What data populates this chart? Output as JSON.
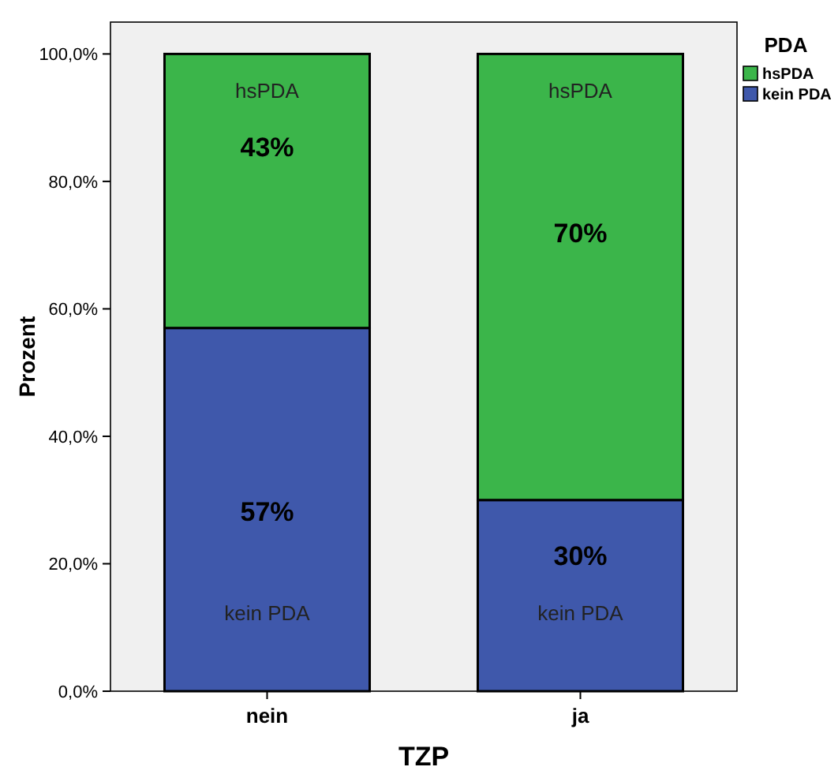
{
  "chart_data": {
    "type": "bar",
    "stacked": true,
    "xlabel": "TZP",
    "ylabel": "Prozent",
    "legend_title": "PDA",
    "legend": "top right",
    "categories": [
      "nein",
      "ja"
    ],
    "series": [
      {
        "name": "kein PDA",
        "color": "#3f58ab",
        "values": [
          57,
          30
        ],
        "value_labels": [
          "57%",
          "30%"
        ]
      },
      {
        "name": "hsPDA",
        "color": "#3bb54a",
        "values": [
          43,
          70
        ],
        "value_labels": [
          "43%",
          "70%"
        ]
      }
    ],
    "ylim": [
      0,
      105
    ],
    "yticks": [
      {
        "value": 0,
        "label": "0,0%"
      },
      {
        "value": 20,
        "label": "20,0%"
      },
      {
        "value": 40,
        "label": "40,0%"
      },
      {
        "value": 60,
        "label": "60,0%"
      },
      {
        "value": 80,
        "label": "80,0%"
      },
      {
        "value": 100,
        "label": "100,0%"
      }
    ],
    "grid": false
  }
}
